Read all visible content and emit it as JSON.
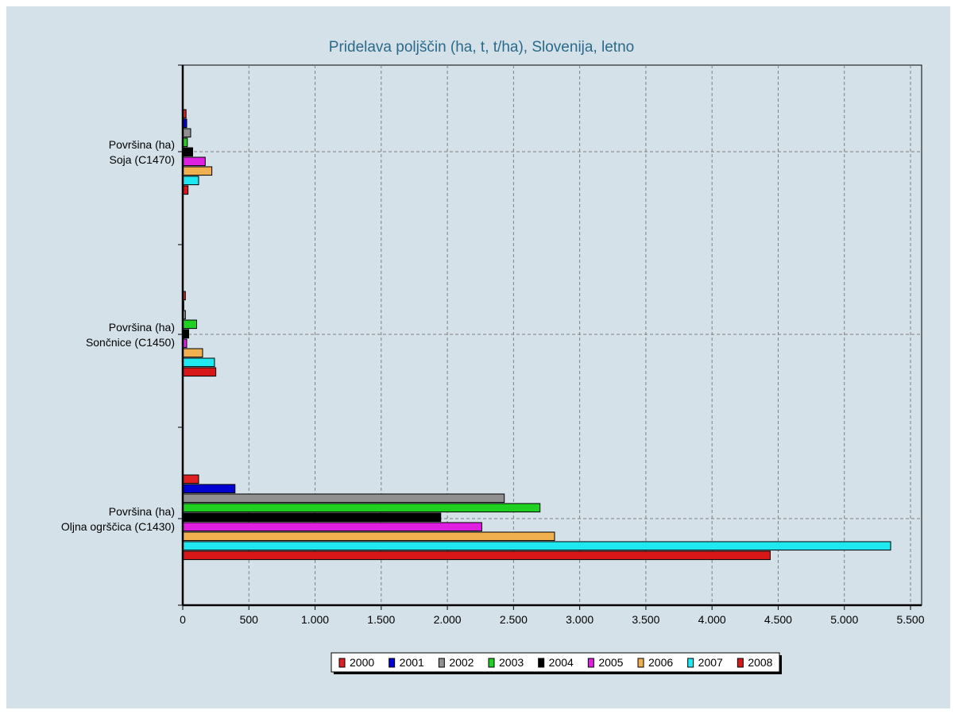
{
  "chart_data": {
    "type": "bar",
    "orientation": "horizontal",
    "title": "Pridelava poljščin (ha, t, t/ha), Slovenija, letno",
    "xlabel": "",
    "ylabel": "",
    "xlim": [
      0,
      5500
    ],
    "x_ticks": [
      "0",
      "500",
      "1.000",
      "1.500",
      "2.000",
      "2.500",
      "3.000",
      "3.500",
      "4.000",
      "4.500",
      "5.000",
      "5.500"
    ],
    "grid": true,
    "legend_position": "bottom",
    "categories": [
      {
        "line1": "Površina (ha)",
        "line2": "Soja (C1470)"
      },
      {
        "line1": "Površina (ha)",
        "line2": "Sončnice (C1450)"
      },
      {
        "line1": "Površina (ha)",
        "line2": "Oljna ogrščica (C1430)"
      }
    ],
    "series": [
      {
        "name": "2000",
        "color": "#e02020",
        "values": [
          25,
          20,
          120
        ]
      },
      {
        "name": "2001",
        "color": "#0000d0",
        "values": [
          30,
          8,
          395
        ]
      },
      {
        "name": "2002",
        "color": "#909090",
        "values": [
          60,
          20,
          2430
        ]
      },
      {
        "name": "2003",
        "color": "#20d020",
        "values": [
          35,
          105,
          2700
        ]
      },
      {
        "name": "2004",
        "color": "#000000",
        "values": [
          75,
          45,
          1950
        ]
      },
      {
        "name": "2005",
        "color": "#e020e0",
        "values": [
          170,
          30,
          2260
        ]
      },
      {
        "name": "2006",
        "color": "#f0b050",
        "values": [
          220,
          150,
          2810
        ]
      },
      {
        "name": "2007",
        "color": "#20e8f0",
        "values": [
          120,
          240,
          5350
        ]
      },
      {
        "name": "2008",
        "color": "#d81818",
        "values": [
          40,
          250,
          4440
        ]
      }
    ]
  }
}
